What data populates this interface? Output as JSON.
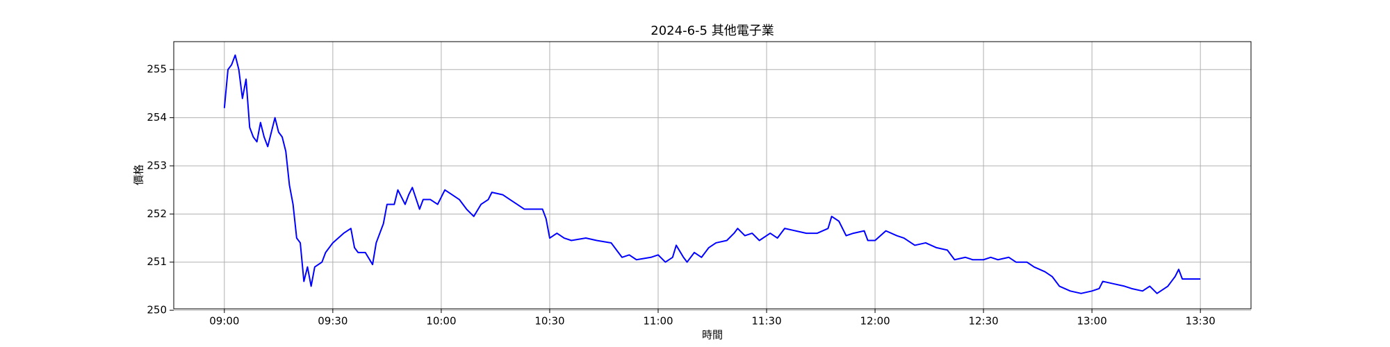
{
  "chart_data": {
    "type": "line",
    "title": "2024-6-5 其他電子業",
    "xlabel": "時間",
    "ylabel": "價格",
    "x": [
      "09:00",
      "09:01",
      "09:02",
      "09:03",
      "09:04",
      "09:05",
      "09:06",
      "09:07",
      "09:08",
      "09:09",
      "09:10",
      "09:11",
      "09:12",
      "09:13",
      "09:14",
      "09:15",
      "09:16",
      "09:17",
      "09:18",
      "09:19",
      "09:20",
      "09:21",
      "09:22",
      "09:23",
      "09:24",
      "09:25",
      "09:27",
      "09:28",
      "09:30",
      "09:33",
      "09:35",
      "09:36",
      "09:37",
      "09:39",
      "09:41",
      "09:42",
      "09:44",
      "09:45",
      "09:47",
      "09:48",
      "09:50",
      "09:51",
      "09:52",
      "09:54",
      "09:55",
      "09:57",
      "09:59",
      "10:01",
      "10:03",
      "10:05",
      "10:07",
      "10:09",
      "10:11",
      "10:13",
      "10:14",
      "10:17",
      "10:19",
      "10:21",
      "10:23",
      "10:25",
      "10:28",
      "10:29",
      "10:30",
      "10:32",
      "10:34",
      "10:36",
      "10:40",
      "10:43",
      "10:47",
      "10:48",
      "10:50",
      "10:52",
      "10:54",
      "10:58",
      "11:00",
      "11:02",
      "11:04",
      "11:05",
      "11:07",
      "11:08",
      "11:10",
      "11:12",
      "11:14",
      "11:16",
      "11:19",
      "11:21",
      "11:22",
      "11:24",
      "11:26",
      "11:28",
      "11:31",
      "11:33",
      "11:35",
      "11:38",
      "11:41",
      "11:44",
      "11:47",
      "11:48",
      "11:50",
      "11:52",
      "11:54",
      "11:57",
      "11:58",
      "12:00",
      "12:03",
      "12:06",
      "12:08",
      "12:11",
      "12:14",
      "12:17",
      "12:20",
      "12:22",
      "12:25",
      "12:27",
      "12:30",
      "12:32",
      "12:34",
      "12:37",
      "12:39",
      "12:42",
      "12:44",
      "12:47",
      "12:49",
      "12:51",
      "12:54",
      "12:57",
      "13:00",
      "13:02",
      "13:03",
      "13:06",
      "13:09",
      "13:11",
      "13:14",
      "13:16",
      "13:18",
      "13:21",
      "13:22",
      "13:23",
      "13:24",
      "13:25",
      "13:30"
    ],
    "series": [
      {
        "name": "價格",
        "color": "#0000ff",
        "values": [
          254.2,
          255.0,
          255.1,
          255.3,
          255.0,
          254.4,
          254.8,
          253.8,
          253.6,
          253.5,
          253.9,
          253.6,
          253.4,
          253.7,
          254.0,
          253.7,
          253.6,
          253.3,
          252.6,
          252.2,
          251.5,
          251.4,
          250.6,
          250.9,
          250.5,
          250.9,
          251.0,
          251.2,
          251.4,
          251.6,
          251.7,
          251.3,
          251.2,
          251.2,
          250.95,
          251.4,
          251.8,
          252.2,
          252.2,
          252.5,
          252.2,
          252.4,
          252.55,
          252.1,
          252.3,
          252.3,
          252.2,
          252.5,
          252.4,
          252.3,
          252.1,
          251.95,
          252.2,
          252.3,
          252.45,
          252.4,
          252.3,
          252.2,
          252.1,
          252.1,
          252.1,
          251.9,
          251.5,
          251.6,
          251.5,
          251.45,
          251.5,
          251.45,
          251.4,
          251.3,
          251.1,
          251.15,
          251.05,
          251.1,
          251.15,
          251.0,
          251.1,
          251.35,
          251.1,
          251.0,
          251.2,
          251.1,
          251.3,
          251.4,
          251.45,
          251.6,
          251.7,
          251.55,
          251.6,
          251.45,
          251.6,
          251.5,
          251.7,
          251.65,
          251.6,
          251.6,
          251.7,
          251.95,
          251.85,
          251.55,
          251.6,
          251.65,
          251.45,
          251.45,
          251.65,
          251.55,
          251.5,
          251.35,
          251.4,
          251.3,
          251.25,
          251.05,
          251.1,
          251.05,
          251.05,
          251.1,
          251.05,
          251.1,
          251.0,
          251.0,
          250.9,
          250.8,
          250.7,
          250.5,
          250.4,
          250.35,
          250.4,
          250.45,
          250.6,
          250.55,
          250.5,
          250.45,
          250.4,
          250.5,
          250.35,
          250.5,
          250.6,
          250.7,
          250.85,
          250.65,
          250.65
        ]
      }
    ],
    "xlim": [
      "08:46",
      "13:44"
    ],
    "ylim": [
      250.03,
      255.58
    ],
    "xticks": [
      "09:00",
      "09:30",
      "10:00",
      "10:30",
      "11:00",
      "11:30",
      "12:00",
      "12:30",
      "13:00",
      "13:30"
    ],
    "yticks": [
      250,
      251,
      252,
      253,
      254,
      255
    ],
    "grid": true
  }
}
